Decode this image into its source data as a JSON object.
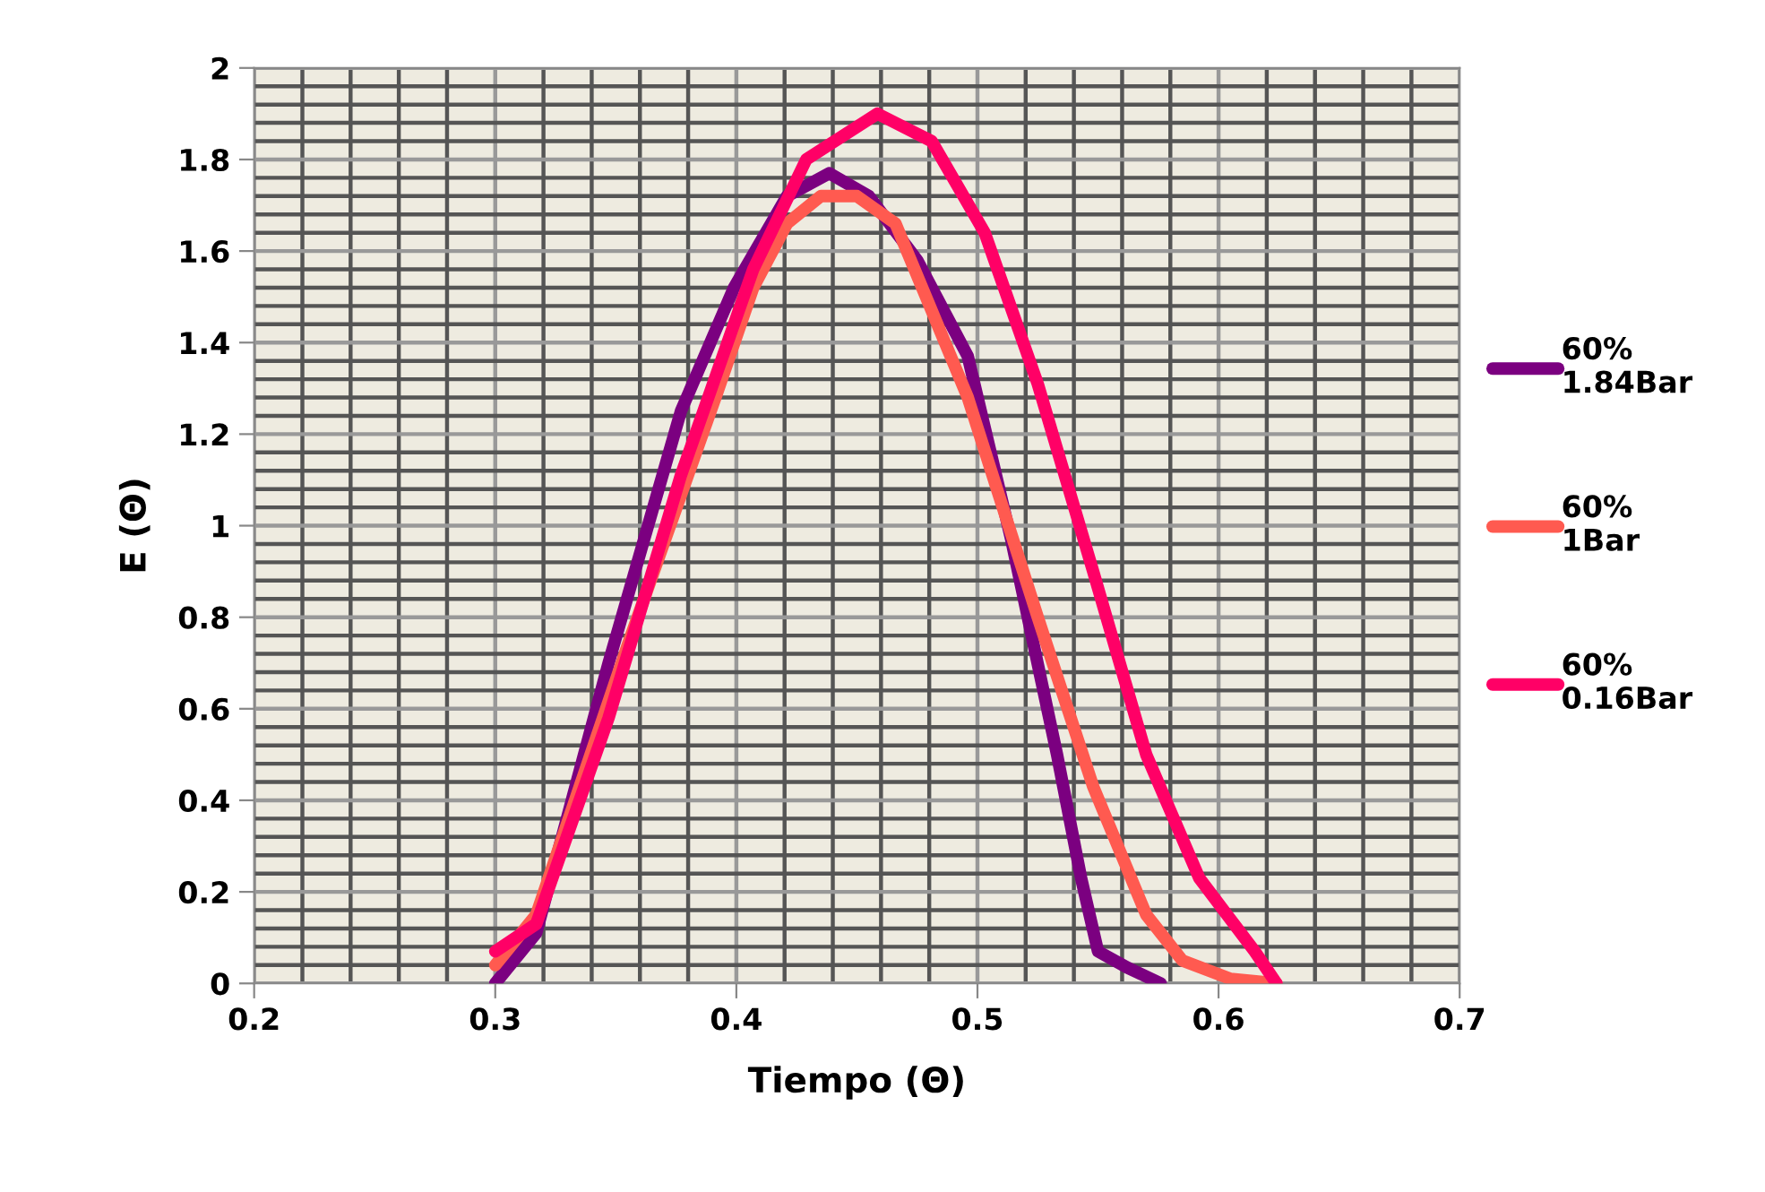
{
  "chart_data": {
    "type": "line",
    "xlabel": "Tiempo (Θ)",
    "ylabel": "E (Θ)",
    "xlim": [
      0.2,
      0.7
    ],
    "xticks": [
      0.2,
      0.3,
      0.4,
      0.5,
      0.6,
      0.7
    ],
    "ylim": [
      0,
      2
    ],
    "yticks": [
      0,
      0.2,
      0.4,
      0.6,
      0.8,
      1,
      1.2,
      1.4,
      1.6,
      1.8,
      2
    ],
    "grid": true,
    "legend": "right",
    "marker": "none",
    "line_style": "solid",
    "series": [
      {
        "name": "60%\n1.84Bar",
        "color": "#7b0080",
        "x": [
          0.3,
          0.317,
          0.347,
          0.377,
          0.399,
          0.421,
          0.4385,
          0.455,
          0.475,
          0.496,
          0.514,
          0.533,
          0.543,
          0.55,
          0.562,
          0.576
        ],
        "values": [
          0,
          0.11,
          0.7,
          1.25,
          1.52,
          1.72,
          1.77,
          1.72,
          1.58,
          1.37,
          0.97,
          0.5,
          0.23,
          0.07,
          0.035,
          0
        ]
      },
      {
        "name": "60%\n1Bar",
        "color": "#ff5a50",
        "x": [
          0.3,
          0.317,
          0.355,
          0.392,
          0.407,
          0.421,
          0.435,
          0.45,
          0.466,
          0.496,
          0.525,
          0.548,
          0.57,
          0.585,
          0.605,
          0.624
        ],
        "values": [
          0.04,
          0.15,
          0.74,
          1.29,
          1.52,
          1.66,
          1.72,
          1.72,
          1.66,
          1.28,
          0.8,
          0.43,
          0.15,
          0.05,
          0.01,
          0
        ]
      },
      {
        "name": "60%\n0.16Bar",
        "color": "#ff0066",
        "x": [
          0.3,
          0.317,
          0.347,
          0.377,
          0.407,
          0.429,
          0.4585,
          0.481,
          0.503,
          0.525,
          0.548,
          0.57,
          0.592,
          0.615,
          0.624
        ],
        "values": [
          0.07,
          0.13,
          0.58,
          1.11,
          1.56,
          1.8,
          1.9,
          1.84,
          1.64,
          1.31,
          0.9,
          0.5,
          0.23,
          0.07,
          0
        ]
      }
    ]
  }
}
